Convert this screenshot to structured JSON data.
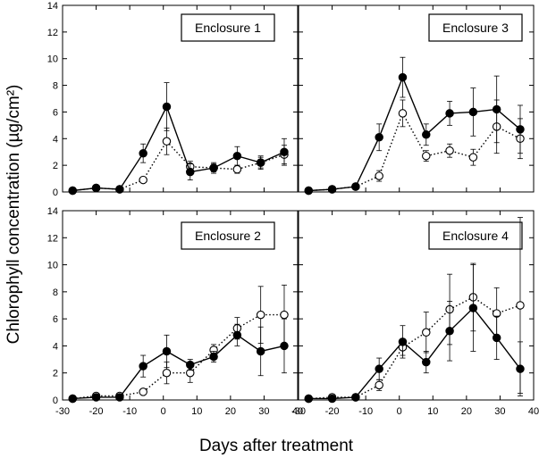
{
  "figure": {
    "ylabel": "Chlorophyll concentration (µg/cm²)",
    "xlabel": "Days after treatment"
  },
  "chart_data": [
    {
      "type": "line",
      "label": "Enclosure 1",
      "x": [
        -27,
        -20,
        -13,
        -6,
        1,
        8,
        15,
        22,
        29,
        36
      ],
      "xlim": [
        -30,
        40
      ],
      "ylim": [
        0,
        14
      ],
      "xticks": [
        -30,
        -20,
        -10,
        0,
        10,
        20,
        30,
        40
      ],
      "yticks": [
        0,
        2,
        4,
        6,
        8,
        10,
        12,
        14
      ],
      "series": [
        {
          "marker": "filled",
          "linestyle": "solid",
          "values": [
            0.1,
            0.3,
            0.2,
            2.9,
            6.4,
            1.5,
            1.8,
            2.7,
            2.2,
            3.0
          ],
          "errors": [
            0.05,
            0.1,
            0.1,
            0.7,
            1.8,
            0.6,
            0.4,
            0.7,
            0.5,
            1.0
          ]
        },
        {
          "marker": "open",
          "linestyle": "dotted",
          "values": [
            0.1,
            0.3,
            0.2,
            0.9,
            3.8,
            1.9,
            1.8,
            1.7,
            2.2,
            2.8
          ],
          "errors": [
            0.05,
            0.1,
            0.1,
            0.2,
            1.0,
            0.4,
            0.3,
            0.3,
            0.4,
            0.7
          ]
        }
      ]
    },
    {
      "type": "line",
      "label": "Enclosure 3",
      "x": [
        -27,
        -20,
        -13,
        -6,
        1,
        8,
        15,
        22,
        29,
        36
      ],
      "xlim": [
        -30,
        40
      ],
      "ylim": [
        0,
        14
      ],
      "xticks": [
        -30,
        -20,
        -10,
        0,
        10,
        20,
        30,
        40
      ],
      "yticks": [
        0,
        2,
        4,
        6,
        8,
        10,
        12,
        14
      ],
      "series": [
        {
          "marker": "filled",
          "linestyle": "solid",
          "values": [
            0.1,
            0.2,
            0.4,
            4.1,
            8.6,
            4.3,
            5.9,
            6.0,
            6.2,
            4.7
          ],
          "errors": [
            0.05,
            0.1,
            0.1,
            1.0,
            1.5,
            0.8,
            0.9,
            1.8,
            2.5,
            1.8
          ]
        },
        {
          "marker": "open",
          "linestyle": "dotted",
          "values": [
            0.1,
            0.2,
            0.4,
            1.2,
            5.9,
            2.7,
            3.1,
            2.6,
            4.9,
            4.0
          ],
          "errors": [
            0.05,
            0.1,
            0.1,
            0.4,
            1.0,
            0.4,
            0.5,
            0.6,
            2.0,
            1.5
          ]
        }
      ]
    },
    {
      "type": "line",
      "label": "Enclosure 2",
      "x": [
        -27,
        -20,
        -13,
        -6,
        1,
        8,
        15,
        22,
        29,
        36
      ],
      "xlim": [
        -30,
        40
      ],
      "ylim": [
        0,
        14
      ],
      "xticks": [
        -30,
        -20,
        -10,
        0,
        10,
        20,
        30,
        40
      ],
      "yticks": [
        0,
        2,
        4,
        6,
        8,
        10,
        12,
        14
      ],
      "series": [
        {
          "marker": "filled",
          "linestyle": "solid",
          "values": [
            0.1,
            0.2,
            0.2,
            2.5,
            3.6,
            2.6,
            3.2,
            4.8,
            3.6,
            4.0
          ],
          "errors": [
            0.05,
            0.1,
            0.1,
            0.8,
            1.2,
            0.4,
            0.4,
            0.8,
            1.8,
            2.0
          ]
        },
        {
          "marker": "open",
          "linestyle": "dotted",
          "values": [
            0.1,
            0.3,
            0.3,
            0.6,
            2.0,
            2.0,
            3.7,
            5.3,
            6.3,
            6.3
          ],
          "errors": [
            0.05,
            0.1,
            0.1,
            0.2,
            0.8,
            0.7,
            0.4,
            0.8,
            2.1,
            2.2
          ]
        }
      ]
    },
    {
      "type": "line",
      "label": "Enclosure 4",
      "x": [
        -27,
        -20,
        -13,
        -6,
        1,
        8,
        15,
        22,
        29,
        36
      ],
      "xlim": [
        -30,
        40
      ],
      "ylim": [
        0,
        14
      ],
      "xticks": [
        -30,
        -20,
        -10,
        0,
        10,
        20,
        30,
        40
      ],
      "yticks": [
        0,
        2,
        4,
        6,
        8,
        10,
        12,
        14
      ],
      "series": [
        {
          "marker": "filled",
          "linestyle": "solid",
          "values": [
            0.1,
            0.1,
            0.2,
            2.3,
            4.3,
            2.8,
            5.1,
            6.8,
            4.6,
            2.3
          ],
          "errors": [
            0.05,
            0.1,
            0.1,
            0.8,
            1.2,
            0.8,
            2.2,
            3.2,
            1.6,
            2.0
          ]
        },
        {
          "marker": "open",
          "linestyle": "dotted",
          "values": [
            0.1,
            0.2,
            0.2,
            1.1,
            3.9,
            5.0,
            6.7,
            7.6,
            6.4,
            7.0
          ],
          "errors": [
            0.05,
            0.1,
            0.1,
            0.4,
            0.6,
            1.5,
            2.6,
            2.5,
            1.9,
            6.5
          ]
        }
      ]
    }
  ]
}
